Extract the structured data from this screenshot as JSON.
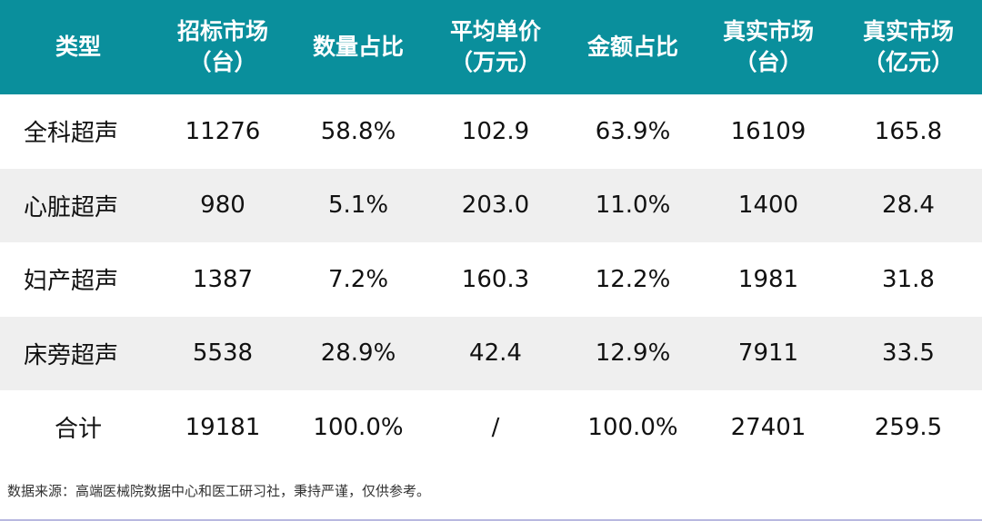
{
  "table": {
    "headers": [
      [
        "类型"
      ],
      [
        "招标市场",
        "（台）"
      ],
      [
        "数量占比"
      ],
      [
        "平均单价",
        "（万元）"
      ],
      [
        "金额占比"
      ],
      [
        "真实市场",
        "（台）"
      ],
      [
        "真实市场",
        "（亿元）"
      ]
    ],
    "rows": [
      [
        "全科超声",
        "11276",
        "58.8%",
        "102.9",
        "63.9%",
        "16109",
        "165.8"
      ],
      [
        "心脏超声",
        "980",
        "5.1%",
        "203.0",
        "11.0%",
        "1400",
        "28.4"
      ],
      [
        "妇产超声",
        "1387",
        "7.2%",
        "160.3",
        "12.2%",
        "1981",
        "31.8"
      ],
      [
        "床旁超声",
        "5538",
        "28.9%",
        "42.4",
        "12.9%",
        "7911",
        "33.5"
      ],
      [
        "合计",
        "19181",
        "100.0%",
        "/",
        "100.0%",
        "27401",
        "259.5"
      ]
    ]
  },
  "source_note": "数据来源：高端医械院数据中心和医工研习社，秉持严谨，仅供参考。",
  "colors": {
    "header_bg": "#0a8f9c",
    "alt_row_bg": "#efefef"
  }
}
